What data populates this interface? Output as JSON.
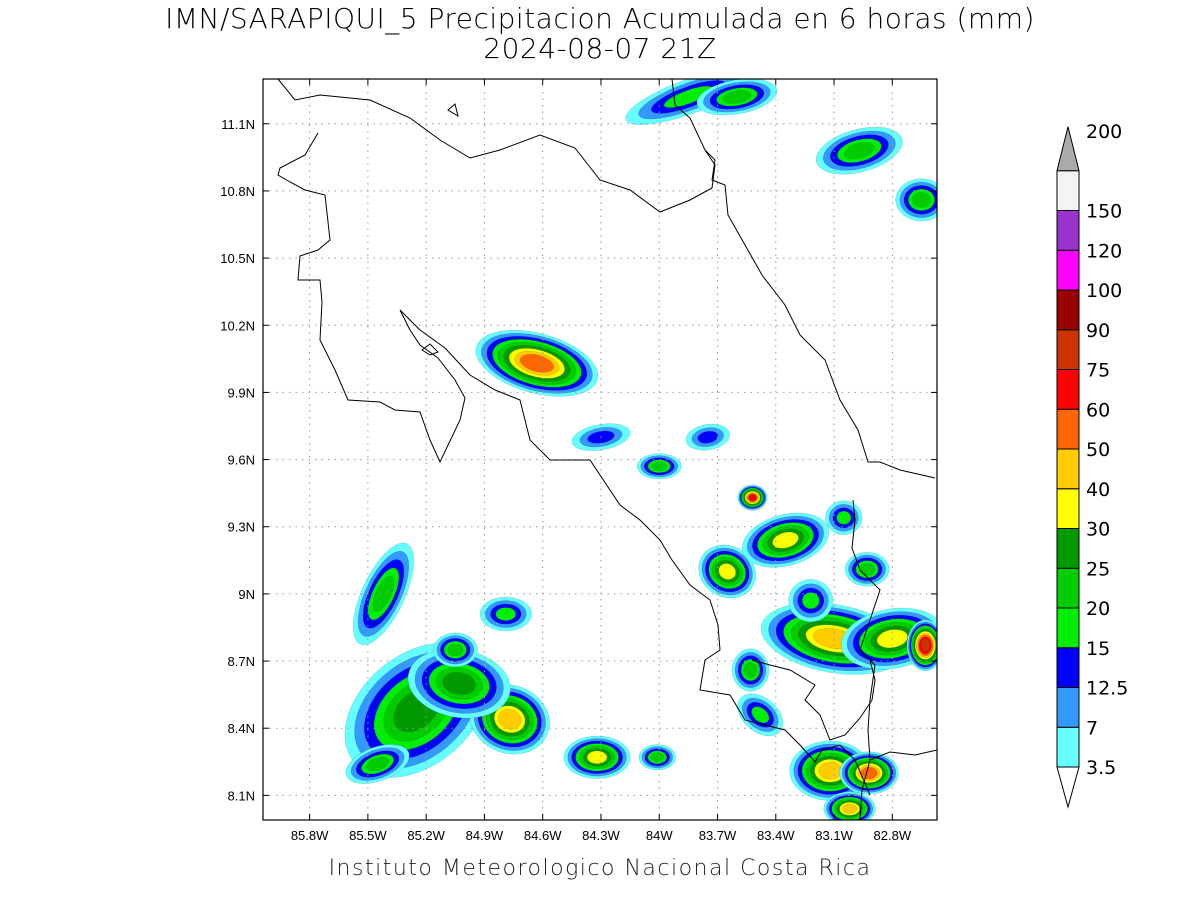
{
  "header": {
    "title": "IMN/SARAPIQUI_5 Precipitacion Acumulada en 6 horas (mm)",
    "subtitle": "2024-08-07 21Z"
  },
  "footer": {
    "text": "Instituto Meteorologico Nacional Costa Rica"
  },
  "map": {
    "lon_range": [
      -86.04,
      -82.57
    ],
    "lat_range": [
      7.99,
      11.3
    ],
    "lon_ticks": [
      {
        "value": -85.8,
        "label": "85.8W"
      },
      {
        "value": -85.5,
        "label": "85.5W"
      },
      {
        "value": -85.2,
        "label": "85.2W"
      },
      {
        "value": -84.9,
        "label": "84.9W"
      },
      {
        "value": -84.6,
        "label": "84.6W"
      },
      {
        "value": -84.3,
        "label": "84.3W"
      },
      {
        "value": -84.0,
        "label": "84W"
      },
      {
        "value": -83.7,
        "label": "83.7W"
      },
      {
        "value": -83.4,
        "label": "83.4W"
      },
      {
        "value": -83.1,
        "label": "83.1W"
      },
      {
        "value": -82.8,
        "label": "82.8W"
      }
    ],
    "lat_ticks": [
      {
        "value": 11.1,
        "label": "11.1N"
      },
      {
        "value": 10.8,
        "label": "10.8N"
      },
      {
        "value": 10.5,
        "label": "10.5N"
      },
      {
        "value": 10.2,
        "label": "10.2N"
      },
      {
        "value": 9.9,
        "label": "9.9N"
      },
      {
        "value": 9.6,
        "label": "9.6N"
      },
      {
        "value": 9.3,
        "label": "9.3N"
      },
      {
        "value": 9.0,
        "label": "9N"
      },
      {
        "value": 8.7,
        "label": "8.7N"
      },
      {
        "value": 8.4,
        "label": "8.4N"
      },
      {
        "value": 8.1,
        "label": "8.1N"
      }
    ],
    "grid": true
  },
  "colorbar": {
    "labels": [
      "3.5",
      "7",
      "12.5",
      "15",
      "20",
      "25",
      "30",
      "40",
      "50",
      "60",
      "75",
      "90",
      "100",
      "120",
      "150",
      "200"
    ],
    "colors": [
      "#66ffff",
      "#3399ff",
      "#0000ff",
      "#00ee00",
      "#00cc00",
      "#009900",
      "#ffff00",
      "#ffcc00",
      "#ff6600",
      "#ff0000",
      "#cc3300",
      "#990000",
      "#ff00ff",
      "#9933cc",
      "#f4f4f4",
      "#aaaaaa"
    ]
  },
  "precip_cells": [
    {
      "lon": -84.63,
      "lat": 10.03,
      "rx": 0.17,
      "ry": 0.07,
      "rot": 15,
      "value": 50
    },
    {
      "lon": -85.25,
      "lat": 8.48,
      "rx": 0.22,
      "ry": 0.13,
      "rot": -40,
      "value": 25
    },
    {
      "lon": -84.77,
      "lat": 8.44,
      "rx": 0.11,
      "ry": 0.08,
      "rot": 20,
      "value": 40
    },
    {
      "lon": -85.03,
      "lat": 8.6,
      "rx": 0.14,
      "ry": 0.08,
      "rot": 10,
      "value": 25
    },
    {
      "lon": -85.42,
      "lat": 9.0,
      "rx": 0.15,
      "ry": 0.05,
      "rot": -65,
      "value": 20
    },
    {
      "lon": -85.45,
      "lat": 8.24,
      "rx": 0.09,
      "ry": 0.04,
      "rot": -20,
      "value": 20
    },
    {
      "lon": -84.32,
      "lat": 8.27,
      "rx": 0.09,
      "ry": 0.05,
      "rot": 0,
      "value": 30
    },
    {
      "lon": -83.65,
      "lat": 9.1,
      "rx": 0.08,
      "ry": 0.06,
      "rot": 30,
      "value": 30
    },
    {
      "lon": -83.52,
      "lat": 9.43,
      "rx": 0.04,
      "ry": 0.03,
      "rot": 0,
      "value": 60
    },
    {
      "lon": -83.35,
      "lat": 9.24,
      "rx": 0.12,
      "ry": 0.06,
      "rot": -15,
      "value": 30
    },
    {
      "lon": -83.1,
      "lat": 8.8,
      "rx": 0.2,
      "ry": 0.08,
      "rot": 10,
      "value": 40
    },
    {
      "lon": -82.8,
      "lat": 8.8,
      "rx": 0.14,
      "ry": 0.07,
      "rot": -10,
      "value": 30
    },
    {
      "lon": -82.63,
      "lat": 8.77,
      "rx": 0.05,
      "ry": 0.06,
      "rot": 0,
      "value": 75
    },
    {
      "lon": -83.12,
      "lat": 8.21,
      "rx": 0.11,
      "ry": 0.07,
      "rot": 0,
      "value": 40
    },
    {
      "lon": -82.92,
      "lat": 8.2,
      "rx": 0.08,
      "ry": 0.05,
      "rot": 0,
      "value": 50
    },
    {
      "lon": -83.02,
      "lat": 8.04,
      "rx": 0.07,
      "ry": 0.04,
      "rot": 0,
      "value": 40
    },
    {
      "lon": -82.97,
      "lat": 10.98,
      "rx": 0.12,
      "ry": 0.05,
      "rot": -15,
      "value": 20
    },
    {
      "lon": -82.65,
      "lat": 10.76,
      "rx": 0.07,
      "ry": 0.05,
      "rot": 0,
      "value": 20
    },
    {
      "lon": -83.85,
      "lat": 11.22,
      "rx": 0.18,
      "ry": 0.04,
      "rot": -20,
      "value": 15
    },
    {
      "lon": -83.6,
      "lat": 11.22,
      "rx": 0.11,
      "ry": 0.04,
      "rot": -10,
      "value": 20
    },
    {
      "lon": -83.05,
      "lat": 9.34,
      "rx": 0.05,
      "ry": 0.04,
      "rot": 0,
      "value": 15
    },
    {
      "lon": -82.93,
      "lat": 9.11,
      "rx": 0.06,
      "ry": 0.04,
      "rot": 0,
      "value": 20
    },
    {
      "lon": -84.0,
      "lat": 9.57,
      "rx": 0.06,
      "ry": 0.03,
      "rot": 0,
      "value": 20
    },
    {
      "lon": -83.48,
      "lat": 8.46,
      "rx": 0.07,
      "ry": 0.04,
      "rot": 40,
      "value": 15
    },
    {
      "lon": -84.79,
      "lat": 8.91,
      "rx": 0.07,
      "ry": 0.04,
      "rot": 0,
      "value": 15
    },
    {
      "lon": -85.05,
      "lat": 8.75,
      "rx": 0.06,
      "ry": 0.04,
      "rot": 0,
      "value": 20
    },
    {
      "lon": -83.53,
      "lat": 8.66,
      "rx": 0.05,
      "ry": 0.05,
      "rot": 0,
      "value": 20
    },
    {
      "lon": -83.22,
      "lat": 8.97,
      "rx": 0.06,
      "ry": 0.05,
      "rot": 0,
      "value": 15
    },
    {
      "lon": -84.01,
      "lat": 8.27,
      "rx": 0.05,
      "ry": 0.03,
      "rot": 0,
      "value": 20
    },
    {
      "lon": -84.3,
      "lat": 9.7,
      "rx": 0.08,
      "ry": 0.03,
      "rot": -10,
      "value": 12.5
    },
    {
      "lon": -83.75,
      "lat": 9.7,
      "rx": 0.06,
      "ry": 0.03,
      "rot": -10,
      "value": 12.5
    }
  ]
}
